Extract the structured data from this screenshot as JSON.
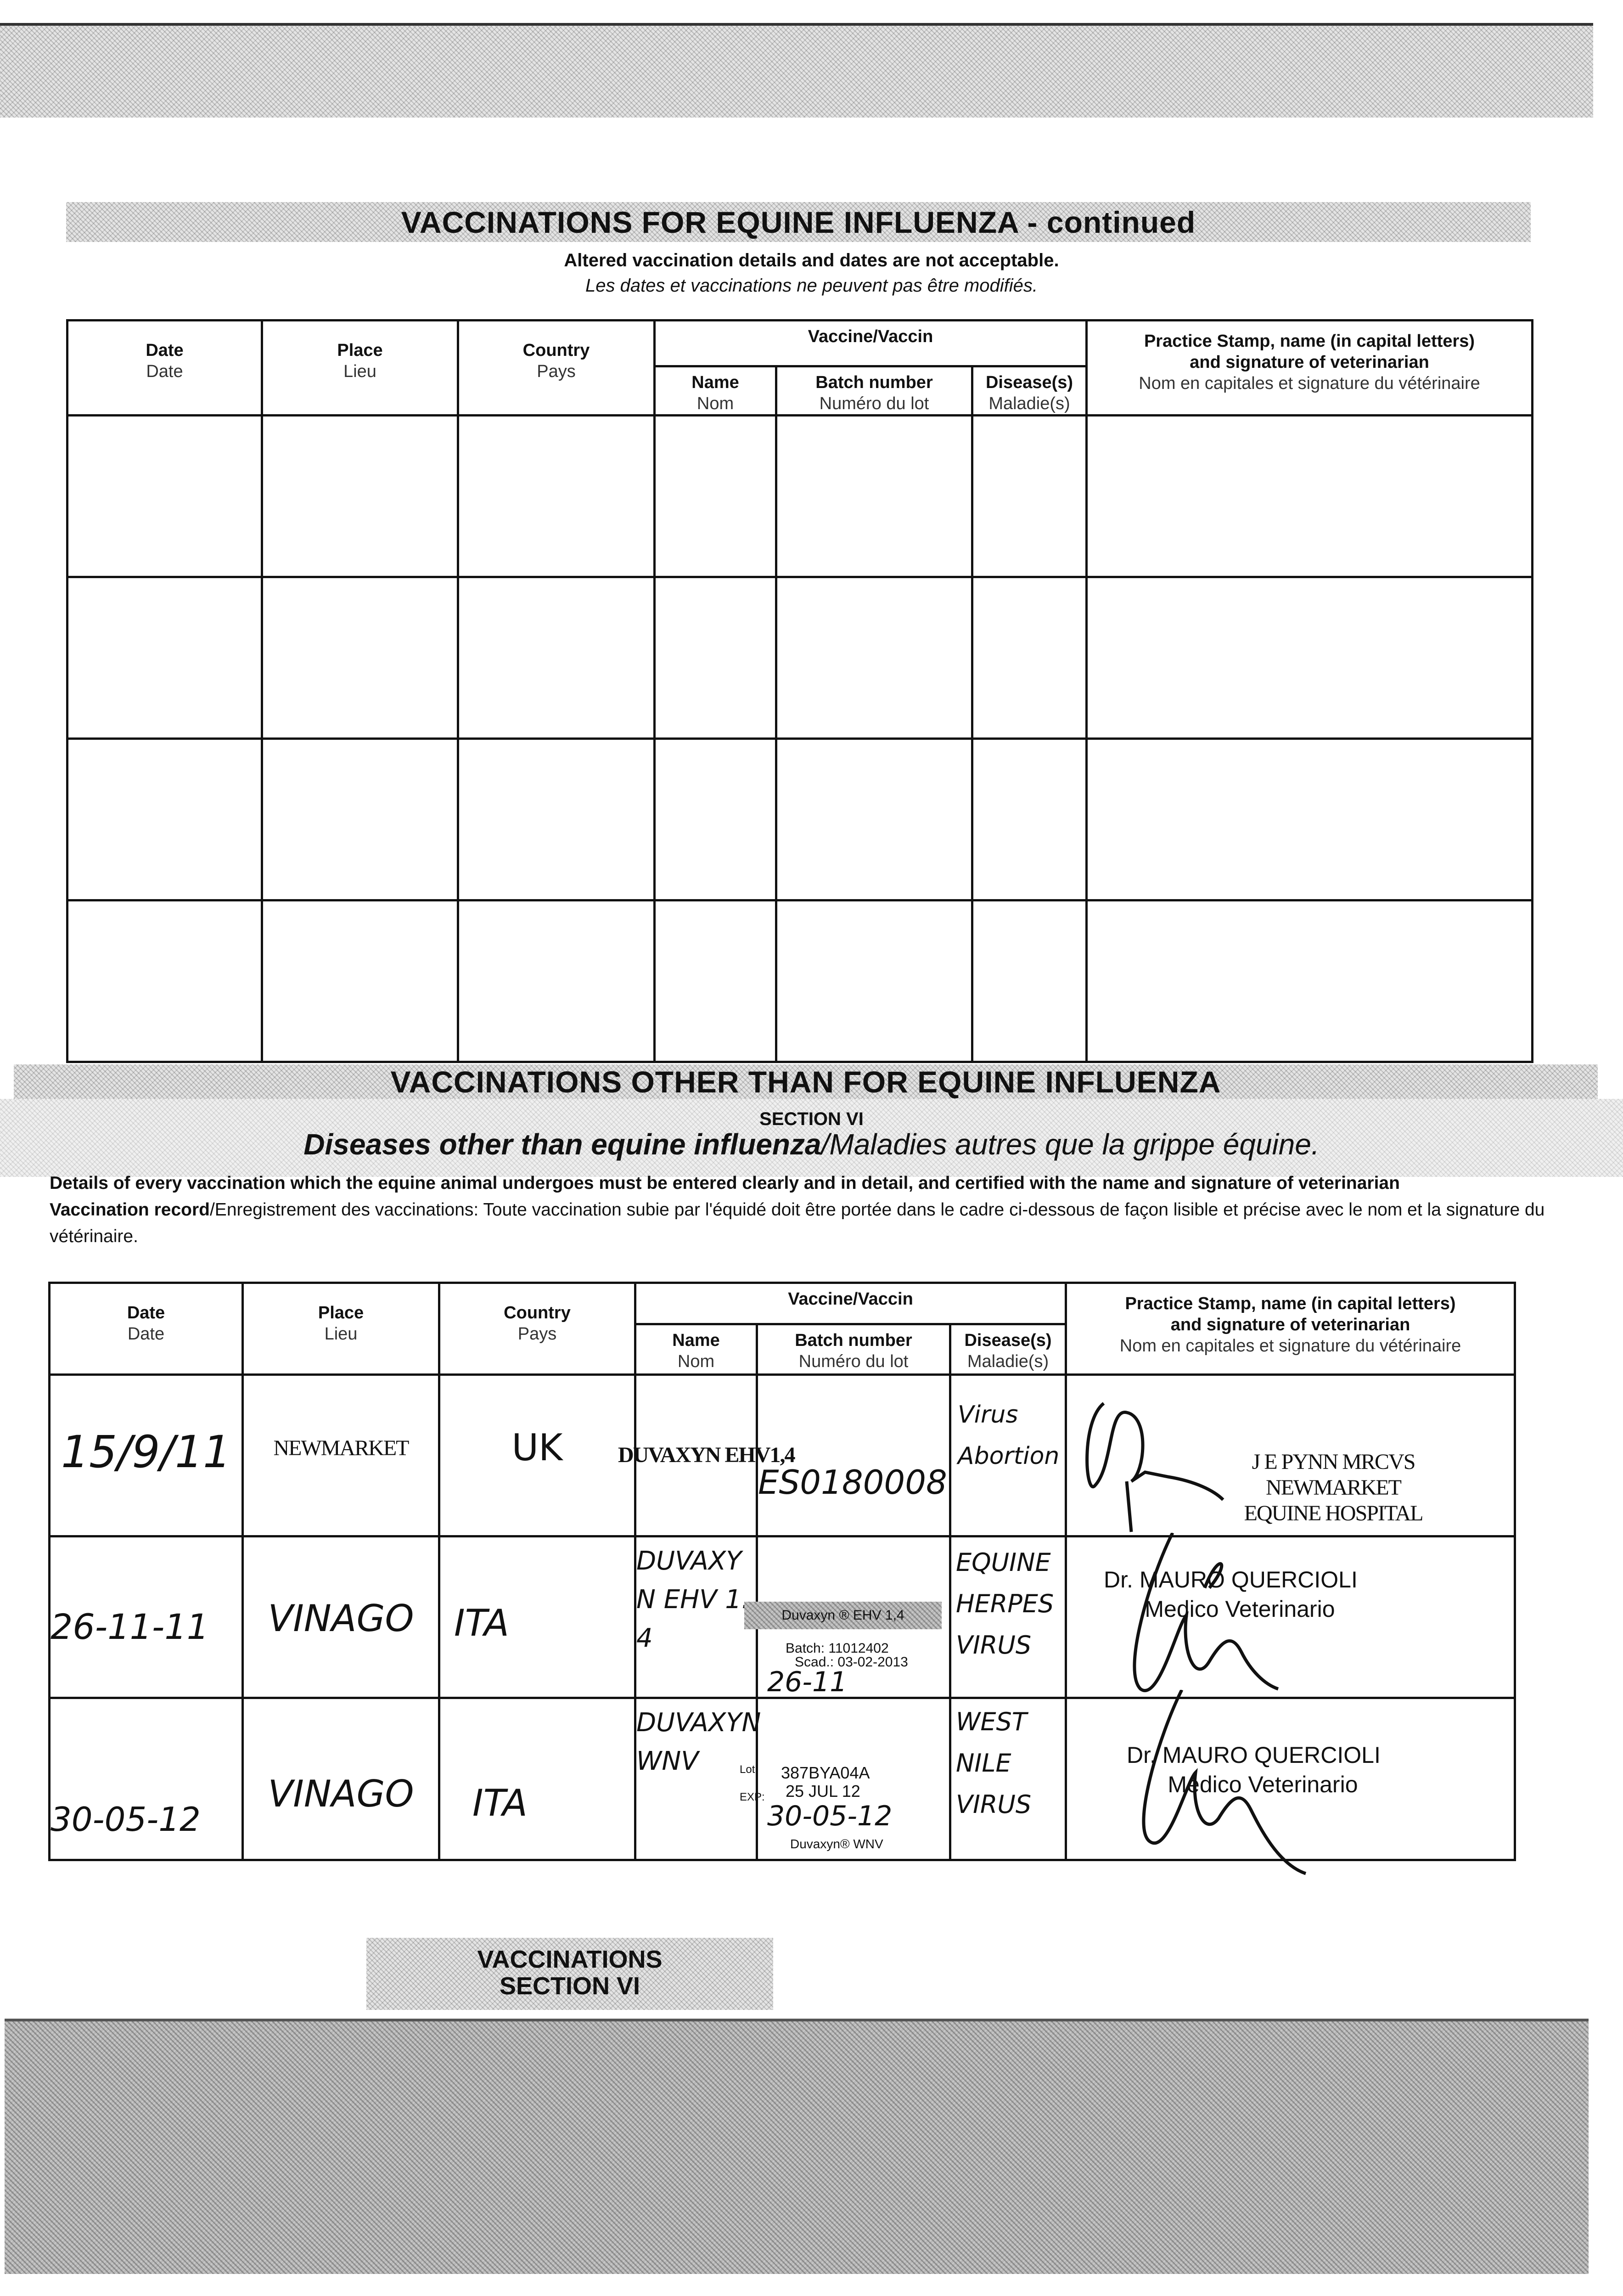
{
  "section_v": {
    "title": "VACCINATIONS FOR EQUINE INFLUENZA - continued",
    "warning_en": "Altered vaccination details and dates are not acceptable.",
    "warning_fr": "Les dates et vaccinations ne peuvent pas être modifiés.",
    "row_count": 4
  },
  "headers": {
    "date": "Date",
    "date_fr": "Date",
    "place": "Place",
    "place_fr": "Lieu",
    "country": "Country",
    "country_fr": "Pays",
    "vaccine": "Vaccine/Vaccin",
    "name": "Name",
    "name_fr": "Nom",
    "batch": "Batch number",
    "batch_fr": "Numéro du lot",
    "disease": "Disease(s)",
    "disease_fr": "Maladie(s)",
    "stamp1": "Practice Stamp, name (in capital letters)",
    "stamp2": "and signature of veterinarian",
    "stamp_fr": "Nom en capitales et signature du vétérinaire"
  },
  "section_vi": {
    "title": "VACCINATIONS OTHER THAN FOR EQUINE INFLUENZA",
    "section_label": "SECTION VI",
    "subtitle_en": "Diseases other than equine influenza",
    "subtitle_fr": "/Maladies autres que la grippe équine.",
    "details_en": "Details of every vaccination which the equine animal undergoes must be entered clearly and in detail, and certified with the name and signature of veterinarian",
    "details_fr_label": "Vaccination record",
    "details_fr": "/Enregistrement des vaccinations: Toute vaccination subie par l'équidé doit être portée dans le cadre ci-dessous de façon lisible et précise avec le nom et la signature du vétérinaire.",
    "rows": [
      {
        "date": "15/9/11",
        "place": "NEWMARKET",
        "country": "UK",
        "name": "DUVAXYN EHV1,4",
        "batch": "ES0180008",
        "disease": "Virus Abortion",
        "stamp": [
          "J E PYNN MRCVS",
          "NEWMARKET",
          "EQUINE HOSPITAL"
        ]
      },
      {
        "date": "26-11-11",
        "place": "VINAGO",
        "country": "ITA",
        "name": "DUVAXYN EHV 1.4",
        "batch_label": "Duvaxyn ® EHV 1,4",
        "batch_line1": "Batch: 11012402",
        "batch_line2": "Scad.: 03-02-2013",
        "batch_hand": "26-11",
        "disease": "EQUINE HERPES VIRUS",
        "stamp": [
          "Dr. MAURO QUERCIOLI",
          "Medico Veterinario"
        ]
      },
      {
        "date": "30-05-12",
        "place": "VINAGO",
        "country": "ITA",
        "name": "DUVAXYN WNV",
        "lot_label": "Lot:",
        "lot": "387BYA04A",
        "exp_label": "EXP:",
        "exp": "25 JUL 12",
        "batch_hand": "30-05-12",
        "batch_label": "Duvaxyn® WNV",
        "disease": "WEST NILE VIRUS",
        "stamp": [
          "Dr. MAURO QUERCIOLI",
          "Medico Veterinario"
        ]
      }
    ]
  },
  "footer_tab": {
    "line1": "VACCINATIONS",
    "line2": "SECTION VI"
  }
}
